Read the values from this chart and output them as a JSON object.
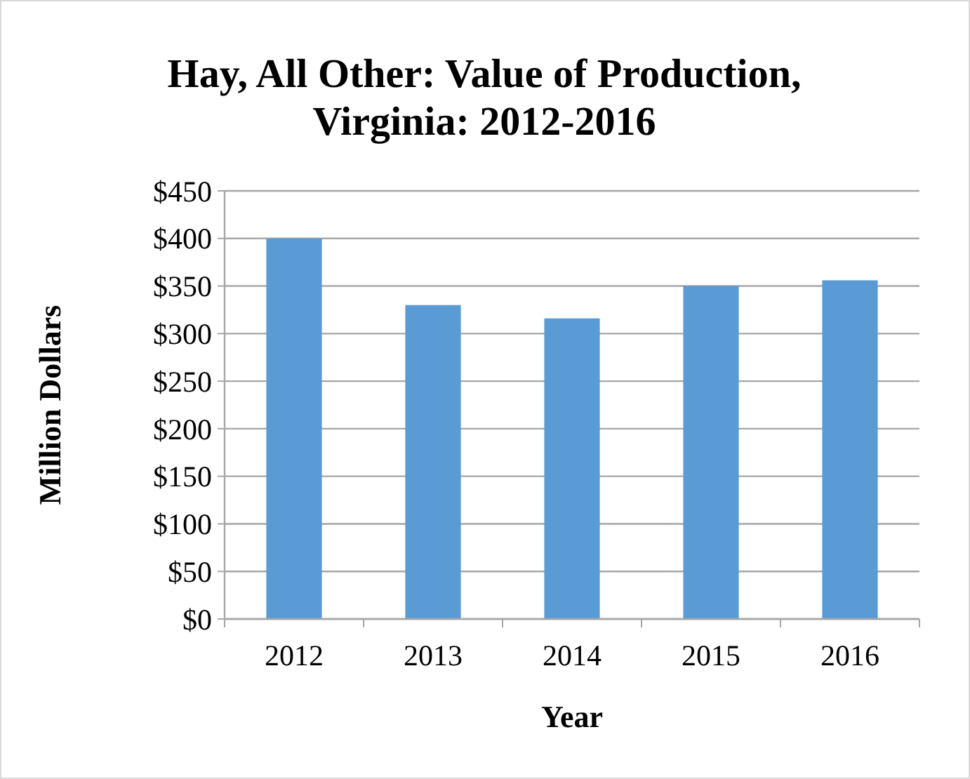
{
  "chart_data": {
    "type": "bar",
    "title": "Hay, All Other: Value of Production, Virginia: 2012-2016",
    "xlabel": "Year",
    "ylabel": "Million Dollars",
    "categories": [
      "2012",
      "2013",
      "2014",
      "2015",
      "2016"
    ],
    "values": [
      400,
      330,
      316,
      350,
      356
    ],
    "color": "#5b9bd5",
    "ylim": [
      0,
      450
    ],
    "yticks": [
      {
        "value": 0,
        "label": "$0"
      },
      {
        "value": 50,
        "label": "$50"
      },
      {
        "value": 100,
        "label": "$100"
      },
      {
        "value": 150,
        "label": "$150"
      },
      {
        "value": 200,
        "label": "$200"
      },
      {
        "value": 250,
        "label": "$250"
      },
      {
        "value": 300,
        "label": "$300"
      },
      {
        "value": 350,
        "label": "$350"
      },
      {
        "value": 400,
        "label": "$400"
      },
      {
        "value": 450,
        "label": "$450"
      }
    ],
    "grid": "y"
  }
}
